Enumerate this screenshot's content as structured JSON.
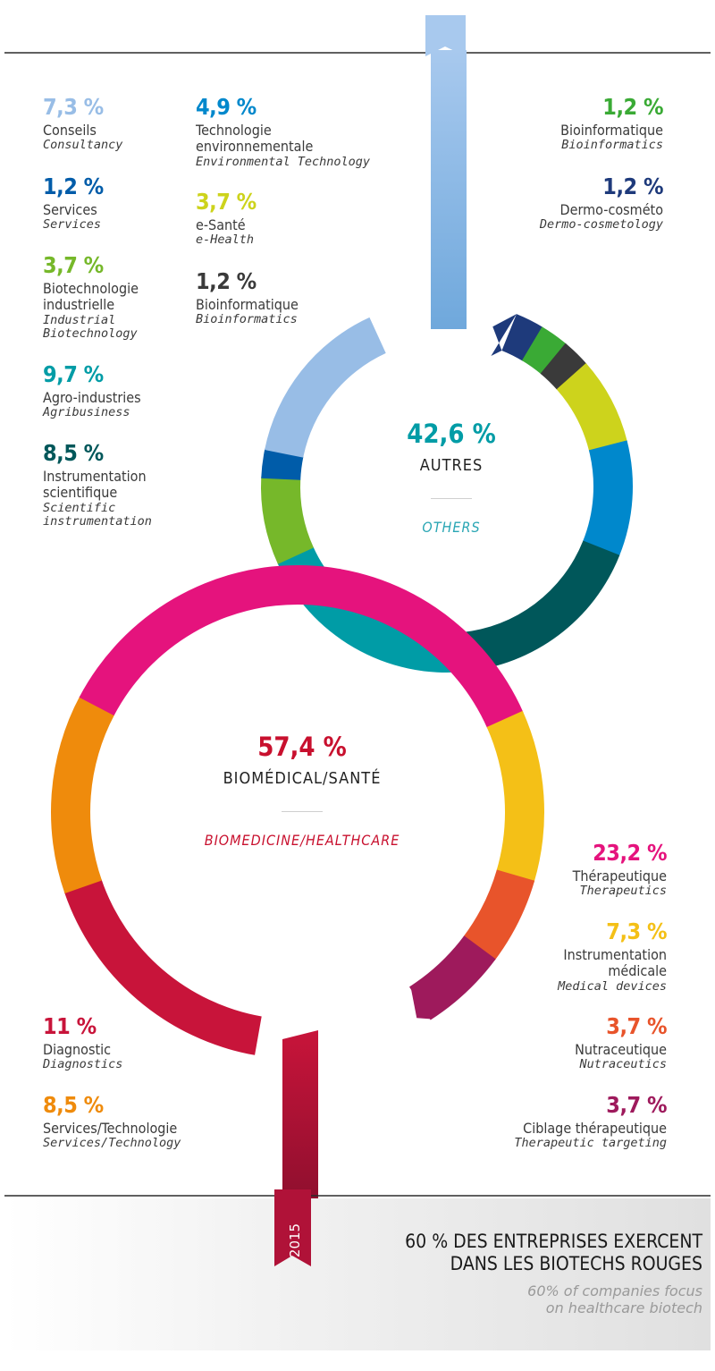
{
  "colors": {
    "top_ribbon": "#7fb1e0",
    "bottom_ribbon": "#a11439",
    "autres_pct": "#009ca6",
    "autres_en": "#2aa6b4",
    "biomed_pct": "#c8102e",
    "biomed_en": "#c8102e"
  },
  "chart_data": [
    {
      "type": "pie",
      "style": "ring",
      "total_label": "42,6 %",
      "title": "AUTRES",
      "subtitle": "OTHERS",
      "segments": [
        {
          "value": 1.2,
          "label": "Dermo-cosméto",
          "label_en": "Dermo-cosmetology",
          "color": "#1e3a7b"
        },
        {
          "value": 1.2,
          "label": "Bioinformatique",
          "label_en": "Bioinformatics",
          "color": "#3aaa35"
        },
        {
          "value": 1.2,
          "label": "Bioinformatique",
          "label_en": "Bioinformatics",
          "color": "#3a3a3a"
        },
        {
          "value": 3.7,
          "label": "e-Santé",
          "label_en": "e-Health",
          "color": "#cdd31c"
        },
        {
          "value": 4.9,
          "label": "Technologie environnementale",
          "label_en": "Environmental Technology",
          "color": "#0088cc"
        },
        {
          "value": 8.5,
          "label": "Instrumentation scientifique",
          "label_en": "Scientific instrumentation",
          "color": "#00575a"
        },
        {
          "value": 9.7,
          "label": "Agro-industries",
          "label_en": "Agribusiness",
          "color": "#009ca6"
        },
        {
          "value": 3.7,
          "label": "Biotechnologie industrielle",
          "label_en": "Industrial Biotechnology",
          "color": "#76b82a"
        },
        {
          "value": 1.2,
          "label": "Services",
          "label_en": "Services",
          "color": "#005ca9"
        },
        {
          "value": 7.3,
          "label": "Conseils",
          "label_en": "Consultancy",
          "color": "#98bde6"
        }
      ]
    },
    {
      "type": "pie",
      "style": "ring",
      "total_label": "57,4 %",
      "title": "BIOMÉDICAL/SANTÉ",
      "subtitle": "BIOMEDICINE/HEALTHCARE",
      "segments": [
        {
          "value": 11,
          "label": "Diagnostic",
          "label_en": "Diagnostics",
          "color": "#c8143a"
        },
        {
          "value": 8.5,
          "label": "Services/Technologie",
          "label_en": "Services/Technology",
          "color": "#ef8b0c"
        },
        {
          "value": 23.2,
          "label": "Thérapeutique",
          "label_en": "Therapeutics",
          "color": "#e5137d"
        },
        {
          "value": 7.3,
          "label": "Instrumentation médicale",
          "label_en": "Medical devices",
          "color": "#f4c017"
        },
        {
          "value": 3.7,
          "label": "Nutraceutique",
          "label_en": "Nutraceutics",
          "color": "#e8542b"
        },
        {
          "value": 3.7,
          "label": "Ciblage thérapeutique",
          "label_en": "Therapeutic targeting",
          "color": "#9e1a5c"
        }
      ]
    }
  ],
  "autres": {
    "pct": "42,6 %",
    "fr": "AUTRES",
    "en": "OTHERS"
  },
  "biomed": {
    "pct": "57,4 %",
    "fr": "BIOMÉDICAL/SANTÉ",
    "en": "BIOMEDICINE/HEALTHCARE"
  },
  "labels_left": [
    {
      "pct": "7,3 %",
      "fr": "Conseils",
      "en": "Consultancy",
      "color": "#98bde6"
    },
    {
      "pct": "1,2 %",
      "fr": "Services",
      "en": "Services",
      "color": "#005ca9"
    },
    {
      "pct": "3,7 %",
      "fr": "Biotechnologie\nindustrielle",
      "en": "Industrial\nBiotechnology",
      "color": "#76b82a"
    },
    {
      "pct": "9,7 %",
      "fr": "Agro-industries",
      "en": "Agribusiness",
      "color": "#009ca6"
    },
    {
      "pct": "8,5 %",
      "fr": "Instrumentation\nscientifique",
      "en": "Scientific\ninstrumentation",
      "color": "#00575a"
    }
  ],
  "labels_mid": [
    {
      "pct": "4,9 %",
      "fr": "Technologie\nenvironnementale",
      "en": "Environmental Technology",
      "color": "#0088cc"
    },
    {
      "pct": "3,7 %",
      "fr": "e-Santé",
      "en": "e-Health",
      "color": "#cdd31c"
    },
    {
      "pct": "1,2 %",
      "fr": "Bioinformatique",
      "en": "Bioinformatics",
      "color": "#3a3a3a"
    }
  ],
  "labels_right_top": [
    {
      "pct": "1,2 %",
      "fr": "Bioinformatique",
      "en": "Bioinformatics",
      "color": "#3aaa35"
    },
    {
      "pct": "1,2 %",
      "fr": "Dermo-cosméto",
      "en": "Dermo-cosmetology",
      "color": "#1e3a7b"
    }
  ],
  "labels_right_bottom": [
    {
      "pct": "23,2 %",
      "fr": "Thérapeutique",
      "en": "Therapeutics",
      "color": "#e5137d"
    },
    {
      "pct": "7,3 %",
      "fr": "Instrumentation\nmédicale",
      "en": "Medical devices",
      "color": "#f4c017"
    },
    {
      "pct": "3,7 %",
      "fr": "Nutraceutique",
      "en": "Nutraceutics",
      "color": "#e8542b"
    },
    {
      "pct": "3,7 %",
      "fr": "Ciblage thérapeutique",
      "en": "Therapeutic targeting",
      "color": "#9e1a5c"
    }
  ],
  "labels_left_bottom": [
    {
      "pct": "11 %",
      "fr": "Diagnostic",
      "en": "Diagnostics",
      "color": "#c8143a"
    },
    {
      "pct": "8,5 %",
      "fr": "Services/Technologie",
      "en": "Services/Technology",
      "color": "#ef8b0c"
    }
  ],
  "footer": {
    "year": "2015",
    "title": "60 % DES ENTREPRISES EXERCENT\nDANS LES BIOTECHS ROUGES",
    "subtitle": "60% of companies focus\non healthcare biotech"
  }
}
